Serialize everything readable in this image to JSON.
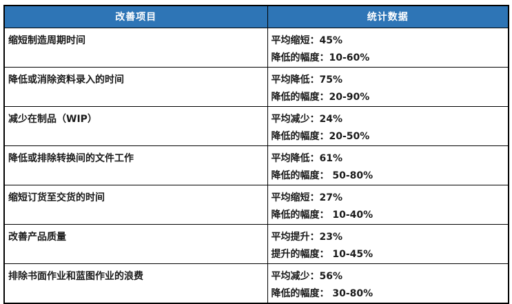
{
  "colors": {
    "header_bg": "#2E75B6",
    "header_text": "#FFFFFF",
    "border": "#000000",
    "cell_text": "#1A1A1A",
    "page_bg": "#FFFFFF"
  },
  "table": {
    "columns": [
      {
        "label": "改善项目"
      },
      {
        "label": "统计数据"
      }
    ],
    "rows": [
      {
        "item": "缩短制造周期时间",
        "stat_lines": [
          "平均缩短：45%",
          "降低的幅度：10-60%"
        ]
      },
      {
        "item": "降低或消除资料录入的时间",
        "stat_lines": [
          "平均降低：75%",
          "降低的幅度：20-90%"
        ]
      },
      {
        "item": "减少在制品（WIP）",
        "stat_lines": [
          "平均减少：24%",
          "降低的幅度：20-50%"
        ]
      },
      {
        "item": "降低或排除转换间的文件工作",
        "stat_lines": [
          "平均降低：61%",
          "降低的幅度： 50-80%"
        ]
      },
      {
        "item": "缩短订货至交货的时间",
        "stat_lines": [
          "平均缩短：27%",
          "降低的幅度： 10-40%"
        ]
      },
      {
        "item": "改善产品质量",
        "stat_lines": [
          "平均提升：23%",
          "提升的幅度： 10-45%"
        ]
      },
      {
        "item": "排除书面作业和蓝图作业的浪费",
        "stat_lines": [
          "平均减少：56%",
          "降低的幅度： 30-80%"
        ]
      }
    ]
  },
  "chart_data": {
    "type": "table",
    "title": "",
    "columns": [
      "改善项目",
      "统计数据"
    ],
    "rows": [
      [
        "缩短制造周期时间",
        "平均缩短：45%；降低的幅度：10-60%"
      ],
      [
        "降低或消除资料录入的时间",
        "平均降低：75%；降低的幅度：20-90%"
      ],
      [
        "减少在制品（WIP）",
        "平均减少：24%；降低的幅度：20-50%"
      ],
      [
        "降低或排除转换间的文件工作",
        "平均降低：61%；降低的幅度：50-80%"
      ],
      [
        "缩短订货至交货的时间",
        "平均缩短：27%；降低的幅度：10-40%"
      ],
      [
        "改善产品质量",
        "平均提升：23%；提升的幅度：10-45%"
      ],
      [
        "排除书面作业和蓝图作业的浪费",
        "平均减少：56%；降低的幅度：30-80%"
      ]
    ]
  }
}
